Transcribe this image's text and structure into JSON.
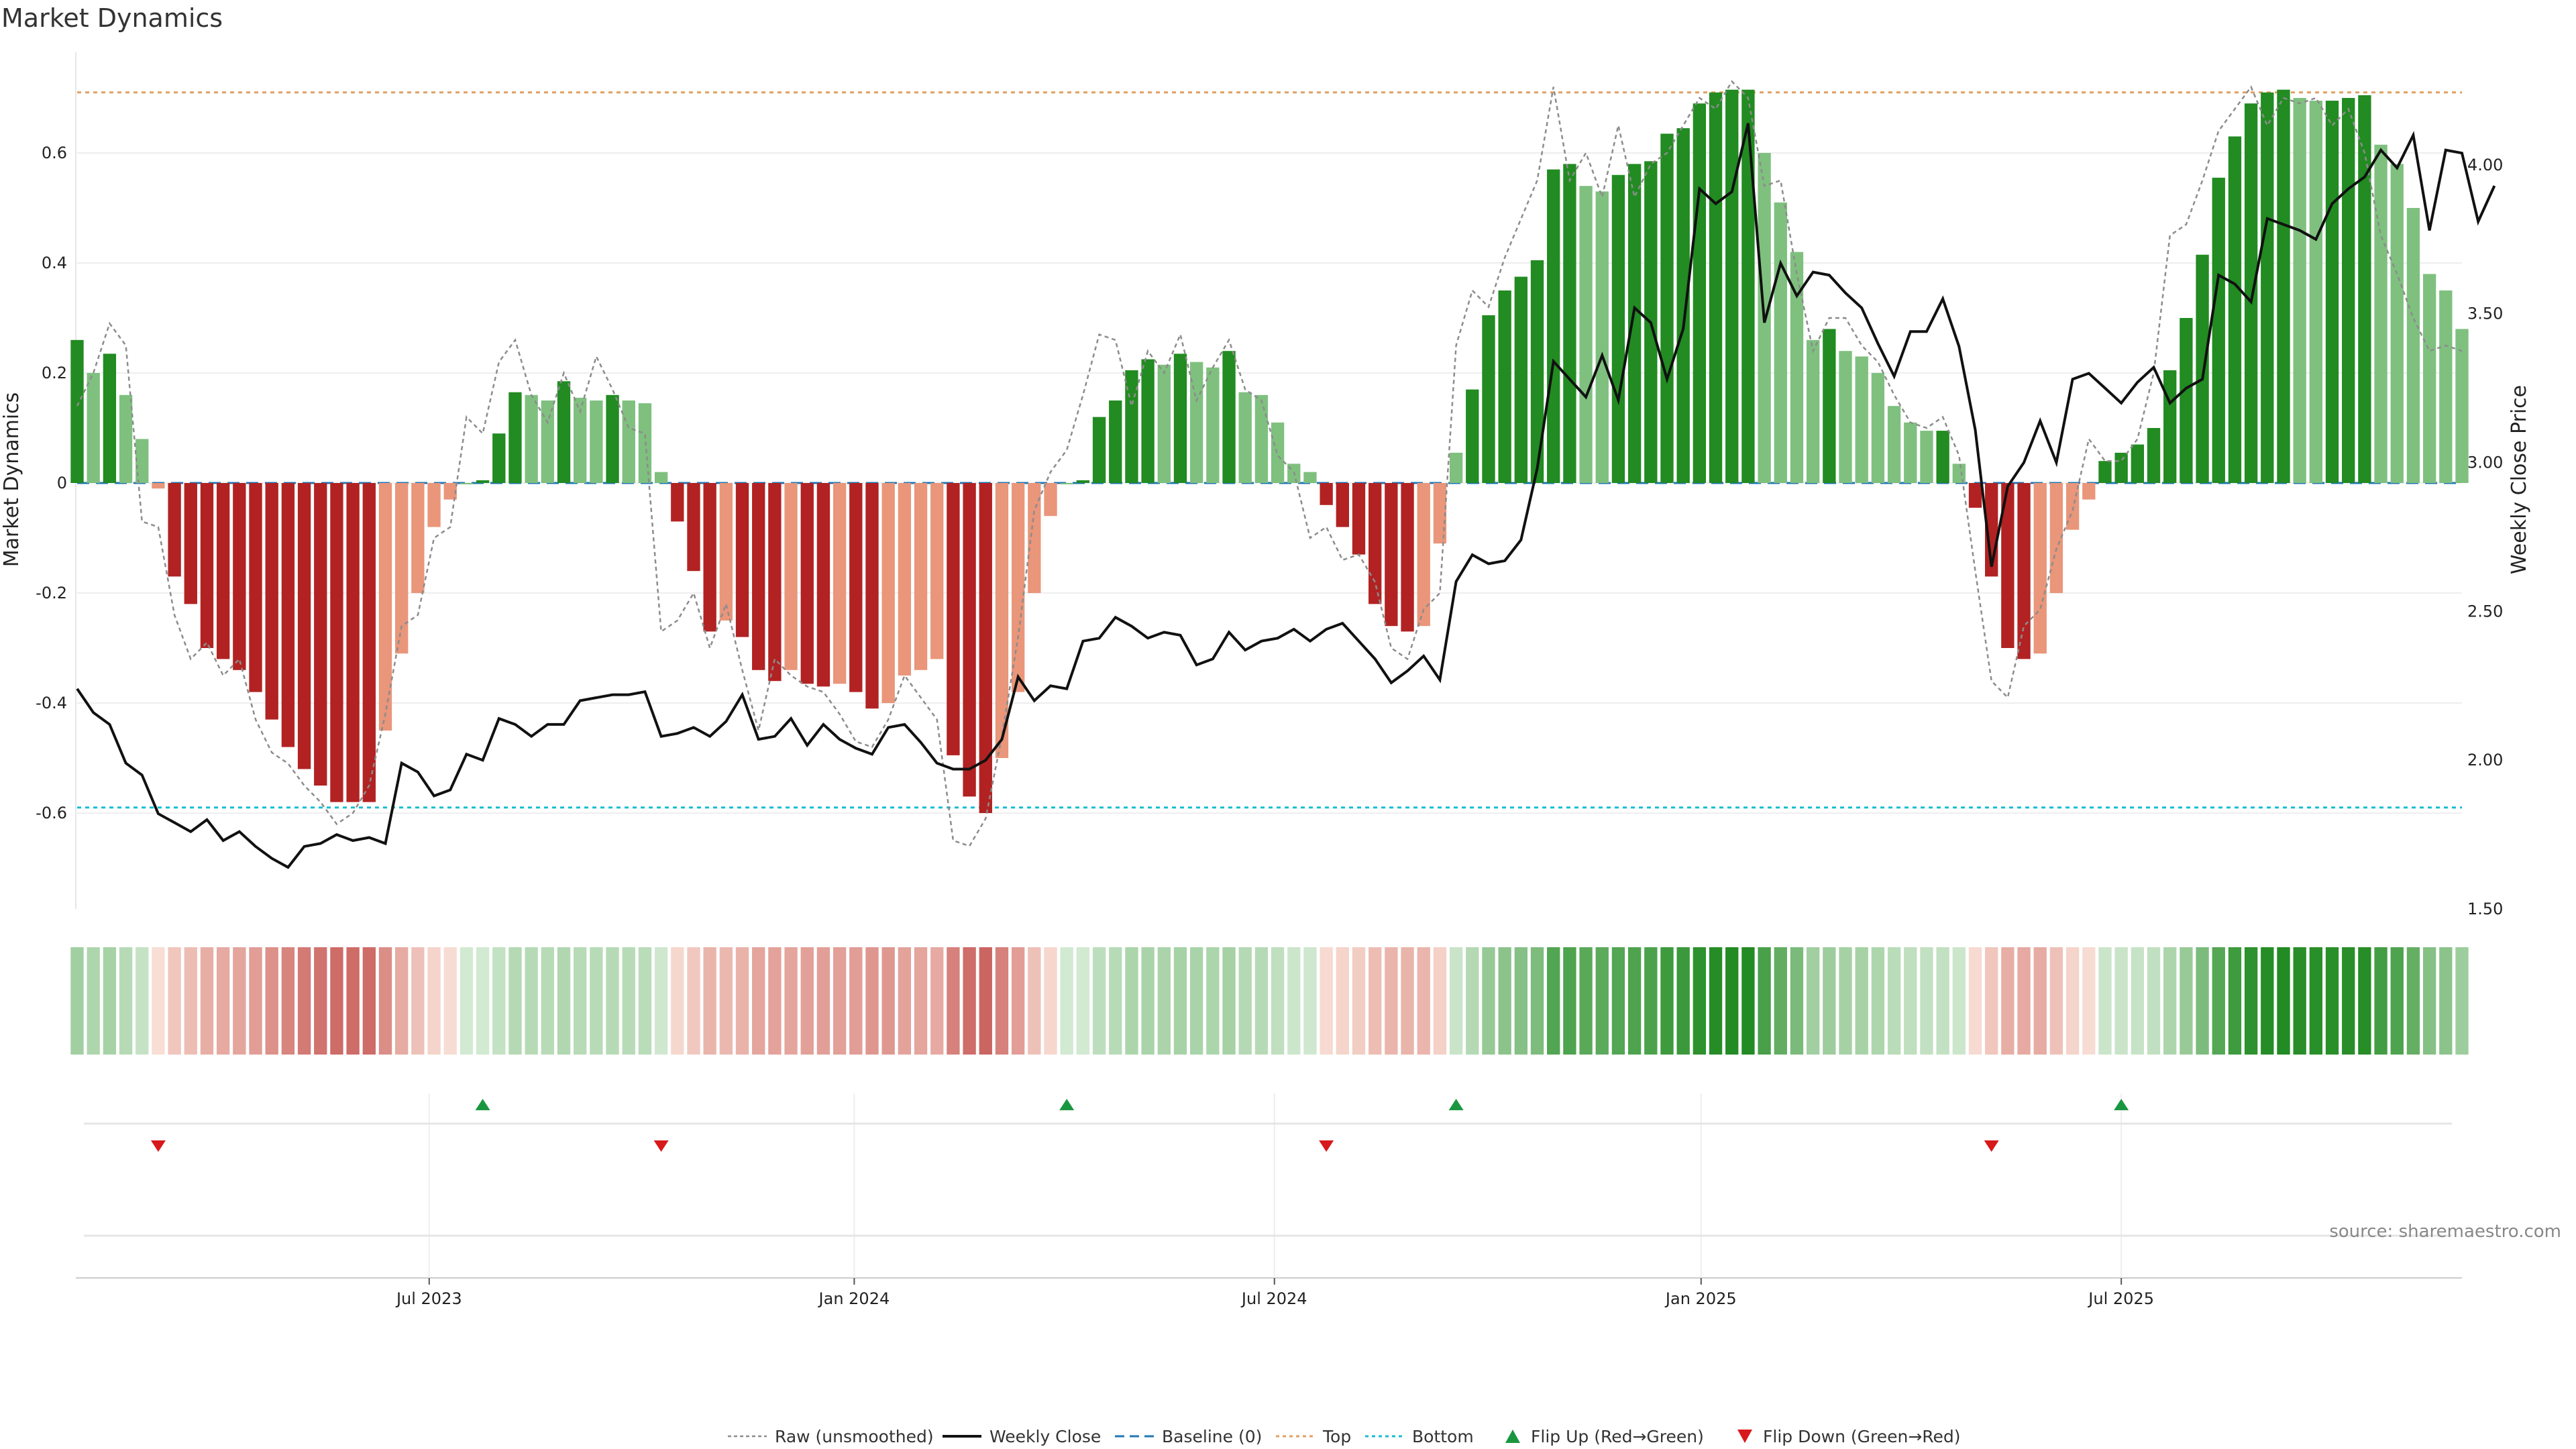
{
  "chart_data": {
    "type": "bar",
    "title": "Market Dynamics",
    "ylabel": "Market Dynamics",
    "y2label": "Weekly Close Price",
    "ylim": [
      -0.78,
      0.78
    ],
    "y2lim": [
      1.5,
      4.25
    ],
    "yticks": [
      "-0.6",
      "-0.4",
      "-0.2",
      "0",
      "0.2",
      "0.4",
      "0.6"
    ],
    "y2ticks": [
      "1.50",
      "2.00",
      "2.50",
      "3.00",
      "3.50",
      "4.00"
    ],
    "xticks": [
      "Jul 2023",
      "Jan 2024",
      "Jul 2024",
      "Jan 2025",
      "Jul 2025"
    ],
    "top_level": 0.71,
    "bottom_level": -0.59,
    "baseline": 0,
    "weeks": 148,
    "series": [
      {
        "name": "Market Dynamics",
        "values": [
          0.26,
          0.2,
          0.235,
          0.16,
          0.08,
          -0.01,
          -0.17,
          -0.22,
          -0.3,
          -0.32,
          -0.34,
          -0.38,
          -0.43,
          -0.48,
          -0.52,
          -0.55,
          -0.58,
          -0.58,
          -0.58,
          -0.45,
          -0.31,
          -0.2,
          -0.08,
          -0.03,
          0.0,
          0.005,
          0.09,
          0.165,
          0.16,
          0.15,
          0.185,
          0.155,
          0.15,
          0.16,
          0.15,
          0.145,
          0.02,
          -0.07,
          -0.16,
          -0.27,
          -0.25,
          -0.28,
          -0.34,
          -0.36,
          -0.34,
          -0.365,
          -0.37,
          -0.365,
          -0.38,
          -0.41,
          -0.4,
          -0.35,
          -0.34,
          -0.32,
          -0.495,
          -0.57,
          -0.6,
          -0.5,
          -0.38,
          -0.2,
          -0.06,
          0.0,
          0.005,
          0.12,
          0.15,
          0.205,
          0.225,
          0.215,
          0.235,
          0.22,
          0.21,
          0.24,
          0.165,
          0.16,
          0.11,
          0.035,
          0.02,
          -0.04,
          -0.08,
          -0.13,
          -0.22,
          -0.26,
          -0.27,
          -0.26,
          -0.11,
          0.055,
          0.17,
          0.305,
          0.35,
          0.375,
          0.405,
          0.57,
          0.58,
          0.54,
          0.53,
          0.56,
          0.58,
          0.585,
          0.635,
          0.645,
          0.69,
          0.71,
          0.715,
          0.715,
          0.6,
          0.51,
          0.42,
          0.26,
          0.28,
          0.24,
          0.23,
          0.2,
          0.14,
          0.11,
          0.095,
          0.095,
          0.035,
          -0.045,
          -0.17,
          -0.3,
          -0.32,
          -0.31,
          -0.2,
          -0.085,
          -0.03,
          0.04,
          0.055,
          0.07,
          0.1,
          0.205,
          0.3,
          0.415,
          0.555,
          0.63,
          0.69,
          0.71,
          0.715,
          0.7,
          0.695,
          0.695,
          0.7,
          0.705,
          0.615,
          0.58,
          0.5,
          0.38,
          0.35,
          0.28
        ]
      },
      {
        "name": "Raw (unsmoothed)",
        "values": [
          0.14,
          0.2,
          0.29,
          0.25,
          -0.07,
          -0.08,
          -0.24,
          -0.32,
          -0.29,
          -0.35,
          -0.32,
          -0.43,
          -0.49,
          -0.51,
          -0.55,
          -0.58,
          -0.62,
          -0.6,
          -0.55,
          -0.42,
          -0.26,
          -0.24,
          -0.1,
          -0.08,
          0.12,
          0.09,
          0.22,
          0.26,
          0.16,
          0.11,
          0.2,
          0.13,
          0.23,
          0.17,
          0.1,
          0.09,
          -0.27,
          -0.25,
          -0.2,
          -0.3,
          -0.22,
          -0.34,
          -0.45,
          -0.32,
          -0.35,
          -0.37,
          -0.38,
          -0.42,
          -0.47,
          -0.48,
          -0.43,
          -0.35,
          -0.39,
          -0.43,
          -0.65,
          -0.66,
          -0.61,
          -0.46,
          -0.28,
          -0.05,
          0.02,
          0.06,
          0.16,
          0.27,
          0.26,
          0.14,
          0.24,
          0.2,
          0.27,
          0.15,
          0.21,
          0.26,
          0.17,
          0.15,
          0.05,
          0.02,
          -0.1,
          -0.08,
          -0.14,
          -0.13,
          -0.18,
          -0.3,
          -0.32,
          -0.23,
          -0.2,
          0.25,
          0.35,
          0.32,
          0.41,
          0.48,
          0.55,
          0.72,
          0.55,
          0.6,
          0.52,
          0.65,
          0.52,
          0.58,
          0.6,
          0.65,
          0.7,
          0.68,
          0.73,
          0.7,
          0.54,
          0.55,
          0.38,
          0.24,
          0.3,
          0.3,
          0.25,
          0.22,
          0.16,
          0.11,
          0.1,
          0.12,
          0.05,
          -0.16,
          -0.36,
          -0.39,
          -0.26,
          -0.23,
          -0.12,
          -0.05,
          0.08,
          0.04,
          0.04,
          0.08,
          0.2,
          0.45,
          0.47,
          0.55,
          0.64,
          0.68,
          0.72,
          0.65,
          0.7,
          0.69,
          0.7,
          0.65,
          0.68,
          0.6,
          0.45,
          0.38,
          0.3,
          0.24,
          0.25,
          0.24
        ]
      },
      {
        "name": "Weekly Close",
        "values": [
          2.24,
          2.16,
          2.12,
          1.99,
          1.95,
          1.82,
          1.79,
          1.76,
          1.8,
          1.73,
          1.76,
          1.71,
          1.67,
          1.64,
          1.71,
          1.72,
          1.75,
          1.73,
          1.74,
          1.72,
          1.99,
          1.96,
          1.88,
          1.9,
          2.02,
          2.0,
          2.14,
          2.12,
          2.08,
          2.12,
          2.12,
          2.2,
          2.21,
          2.22,
          2.22,
          2.23,
          2.08,
          2.09,
          2.11,
          2.08,
          2.13,
          2.22,
          2.07,
          2.08,
          2.14,
          2.05,
          2.12,
          2.07,
          2.04,
          2.02,
          2.11,
          2.12,
          2.06,
          1.99,
          1.97,
          1.97,
          2.0,
          2.07,
          2.28,
          2.2,
          2.25,
          2.24,
          2.4,
          2.41,
          2.48,
          2.45,
          2.41,
          2.43,
          2.42,
          2.32,
          2.34,
          2.43,
          2.37,
          2.4,
          2.41,
          2.44,
          2.4,
          2.44,
          2.46,
          2.4,
          2.34,
          2.26,
          2.3,
          2.35,
          2.27,
          2.6,
          2.69,
          2.66,
          2.67,
          2.74,
          2.98,
          3.34,
          3.28,
          3.22,
          3.36,
          3.21,
          3.52,
          3.47,
          3.28,
          3.45,
          3.92,
          3.87,
          3.91,
          4.14,
          3.47,
          3.67,
          3.56,
          3.64,
          3.63,
          3.57,
          3.52,
          3.4,
          3.29,
          3.44,
          3.44,
          3.55,
          3.39,
          3.11,
          2.65,
          2.92,
          3.0,
          3.14,
          3.0,
          3.28,
          3.3,
          3.25,
          3.2,
          3.27,
          3.32,
          3.2,
          3.25,
          3.28,
          3.63,
          3.6,
          3.54,
          3.82,
          3.8,
          3.78,
          3.75,
          3.87,
          3.92,
          3.96,
          4.05,
          3.99,
          4.1,
          3.78,
          4.05,
          4.04,
          3.81,
          3.93
        ]
      }
    ],
    "flips": {
      "up": {
        "name": "Flip Up (Red→Green)",
        "weeks": [
          25,
          61,
          85,
          126
        ]
      },
      "down": {
        "name": "Flip Down (Green→Red)",
        "weeks": [
          5,
          36,
          77,
          118
        ]
      }
    },
    "legend": [
      "Raw (unsmoothed)",
      "Weekly Close",
      "Baseline (0)",
      "Top",
      "Bottom",
      "Flip Up (Red→Green)",
      "Flip Down (Green→Red)"
    ],
    "legend_placement": "bottom-center",
    "grid": true
  },
  "source_text": "source: sharemaestro.com",
  "colors": {
    "strong_green": "#228b22",
    "light_green": "#7fc07f",
    "strong_red": "#b22222",
    "light_red": "#e9967a",
    "raw_line": "#8c8c8c",
    "close_line": "#111111",
    "baseline": "#1f77b4",
    "top": "#e0a060",
    "bottom": "#17becf",
    "flip_up": "#1a9641",
    "flip_down": "#d7191c"
  }
}
